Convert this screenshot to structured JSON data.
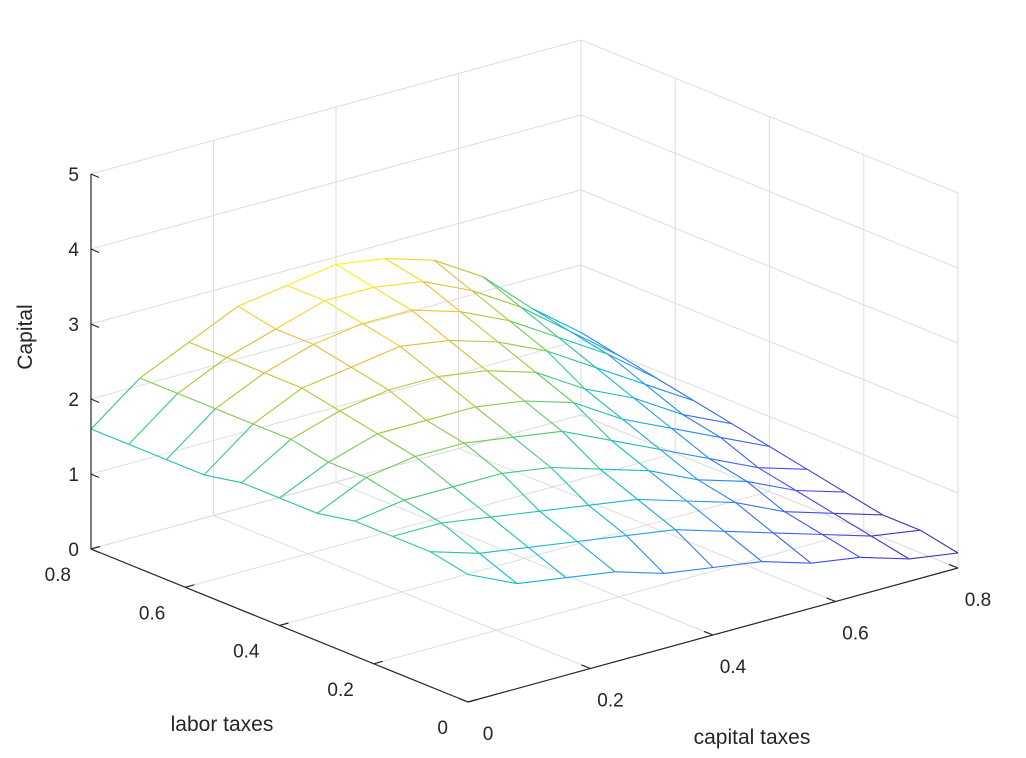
{
  "chart_data": {
    "type": "mesh3d",
    "x_variable": "capital taxes",
    "y_variable": "labor taxes",
    "z_variable": "Capital",
    "xlabel": "capital taxes",
    "ylabel": "labor taxes",
    "zlabel": "Capital",
    "xlim": [
      0,
      0.8
    ],
    "ylim": [
      0,
      0.8
    ],
    "zlim": [
      0,
      5
    ],
    "xticks": [
      "0",
      "0.2",
      "0.4",
      "0.6",
      "0.8"
    ],
    "yticks": [
      "0",
      "0.2",
      "0.4",
      "0.6",
      "0.8"
    ],
    "zticks": [
      "0",
      "1",
      "2",
      "3",
      "4",
      "5"
    ],
    "grid": true,
    "colormap": "parula",
    "mesh_regions": [
      {
        "region": "capital taxes 0 to 0.8, labor taxes 0 to 0.8",
        "plotted": false
      },
      {
        "region": "capital taxes 0 to 0.8, labor taxes 0.8",
        "plotted": true
      }
    ],
    "grid_x": [
      0,
      0.08,
      0.16,
      0.24,
      0.32,
      0.4,
      0.48,
      0.56,
      0.64,
      0.72,
      0.8
    ],
    "grid_y": [
      0,
      0.08,
      0.16,
      0.24,
      0.32,
      0.4,
      0.48,
      0.56,
      0.64,
      0.72,
      0.8
    ],
    "z_values": [
      [
        1.7,
        1.4,
        1.3,
        1.2,
        1.0,
        0.9,
        0.8,
        0.6,
        0.5,
        0.3,
        0.2
      ],
      [
        1.8,
        1.6,
        1.5,
        1.4,
        1.3,
        1.2,
        1.0,
        0.8,
        0.6,
        0.4,
        0.3
      ],
      [
        1.8,
        1.8,
        1.7,
        1.6,
        1.5,
        1.4,
        1.2,
        1.0,
        0.7,
        0.5,
        0.3
      ],
      [
        1.8,
        1.9,
        1.9,
        1.9,
        1.8,
        1.6,
        1.4,
        1.1,
        0.9,
        0.6,
        0.4
      ],
      [
        1.7,
        2.0,
        2.1,
        2.1,
        2.0,
        1.9,
        1.6,
        1.3,
        1.0,
        0.7,
        0.5
      ],
      [
        1.7,
        2.0,
        2.2,
        2.2,
        2.2,
        2.1,
        1.9,
        1.5,
        1.2,
        0.9,
        0.6
      ],
      [
        1.7,
        2.1,
        2.3,
        2.4,
        2.4,
        2.3,
        2.1,
        1.7,
        1.4,
        1.0,
        0.7
      ],
      [
        1.6,
        2.1,
        2.4,
        2.5,
        2.6,
        2.5,
        2.3,
        2.0,
        1.6,
        1.2,
        0.8
      ],
      [
        1.6,
        2.1,
        2.4,
        2.6,
        2.7,
        2.7,
        2.5,
        2.2,
        1.8,
        1.4,
        0.9
      ],
      [
        1.6,
        2.1,
        2.4,
        2.6,
        2.8,
        2.8,
        2.7,
        2.4,
        2.0,
        1.5,
        1.0
      ],
      [
        1.6,
        2.1,
        2.4,
        2.7,
        2.8,
        2.9,
        2.8,
        2.6,
        2.2,
        1.6,
        1.1
      ]
    ]
  }
}
